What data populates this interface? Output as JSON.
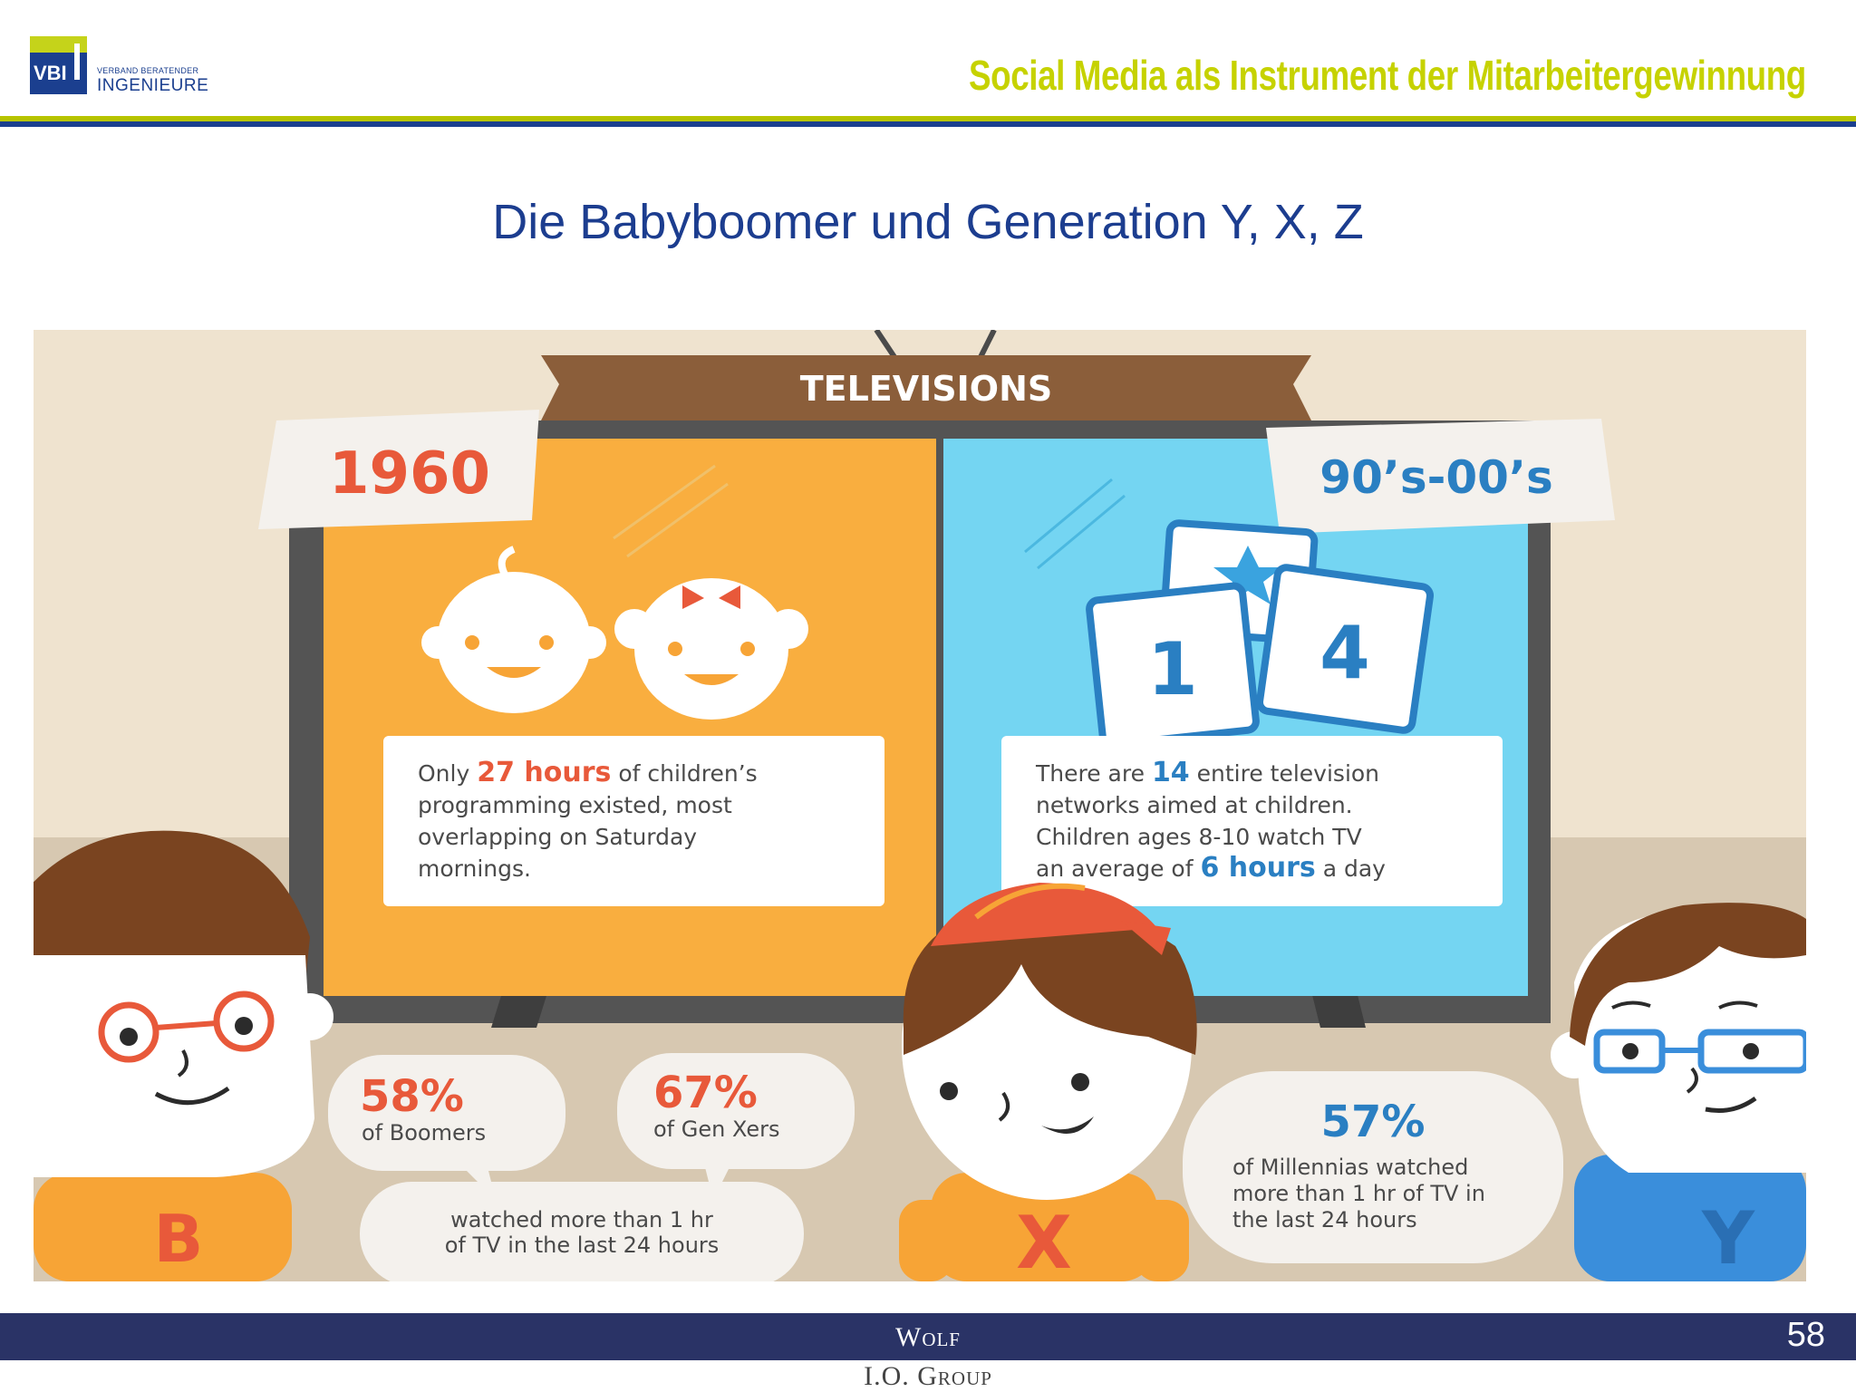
{
  "header": {
    "logo_abbrev": "VBI",
    "logo_small": "VERBAND BERATENDER",
    "logo_big": "INGENIEURE",
    "title": "Social Media als Instrument der Mitarbeitergewinnung"
  },
  "slide": {
    "title": "Die Babyboomer und Generation Y, X, Z"
  },
  "infographic": {
    "banner": "TELEVISIONS",
    "left_tag": "1960",
    "right_tag": "90’s-00’s",
    "left_text": {
      "line1_pre": "Only ",
      "line1_hl": "27 hours",
      "line1_post": " of children’s",
      "line2": "programming existed, most",
      "line3": "overlapping on Saturday",
      "line4": "mornings."
    },
    "right_text": {
      "line1_pre": "There are ",
      "line1_hl": "14",
      "line1_post": " entire television",
      "line2": "networks aimed at children.",
      "line3": "Children ages 8-10 watch TV",
      "line4_pre": "an average of ",
      "line4_hl": "6 hours",
      "line4_post": " a day"
    },
    "channel_numbers": [
      "1",
      "4"
    ],
    "stat_boomers": {
      "value": "58%",
      "label": "of Boomers"
    },
    "stat_genx": {
      "value": "67%",
      "label": "of Gen Xers"
    },
    "shared_caption": [
      "watched more than 1 hr",
      "of TV in the last 24 hours"
    ],
    "stat_millennials": {
      "value": "57%",
      "lines": [
        "of Millennias watched",
        "more than 1 hr of TV in",
        "the last 24 hours"
      ]
    },
    "shirt_letters": [
      "B",
      "X",
      "Y"
    ]
  },
  "footer": {
    "name": "Wolf",
    "sub": "I.O. Group",
    "page": "58"
  },
  "colors": {
    "brand_green": "#c6d200",
    "brand_blue": "#1b3f8f",
    "footer_bar": "#2a3366",
    "tv_orange": "#f9ae3f",
    "tv_blue": "#74d5f2",
    "accent_red": "#e8593a",
    "accent_blue": "#2a7fc2"
  }
}
